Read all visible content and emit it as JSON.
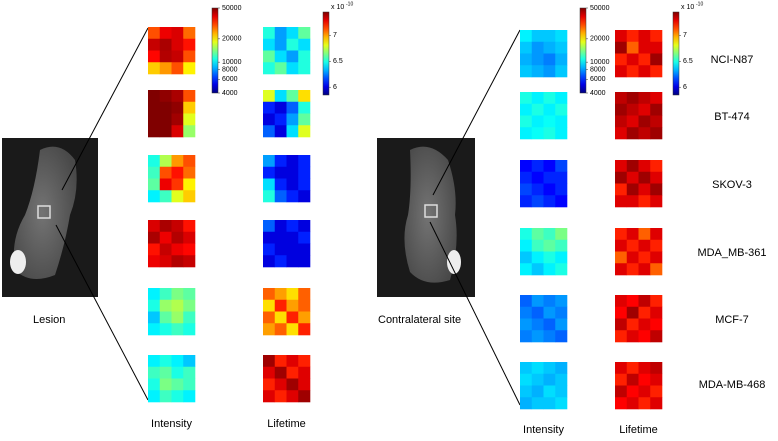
{
  "intensity_colorbar": {
    "lim": [
      4000,
      50000
    ],
    "log": true,
    "ticks": [
      50000,
      20000,
      10000,
      8000,
      6000,
      4000
    ]
  },
  "lifetime_colorbar": {
    "lim": [
      5.85,
      7.45
    ],
    "ticks": [
      7,
      6.5,
      6
    ],
    "multiplier": "x 10",
    "multiplier_exponent": "-10"
  },
  "cell_lines": [
    "NCI-N87",
    "BT-474",
    "SKOV-3",
    "MDA_MB-361",
    "MCF-7",
    "MDA-MB-468"
  ],
  "panels": [
    {
      "site_label": "Lesion",
      "intensity_label": "Intensity",
      "lifetime_label": "Lifetime",
      "rows": [
        {
          "intensity": [
            [
              30000,
              38000,
              40000,
              28000
            ],
            [
              42000,
              45000,
              40000,
              35000
            ],
            [
              36000,
              44000,
              42000,
              30000
            ],
            [
              22000,
              25000,
              30000,
              20000
            ]
          ],
          "lifetime": [
            [
              6.5,
              6.3,
              6.4,
              6.6
            ],
            [
              6.4,
              6.3,
              6.5,
              6.4
            ],
            [
              6.6,
              6.4,
              6.3,
              6.5
            ],
            [
              6.5,
              6.6,
              6.4,
              6.5
            ]
          ]
        },
        {
          "intensity": [
            [
              50000,
              48000,
              45000,
              30000
            ],
            [
              50000,
              50000,
              48000,
              22000
            ],
            [
              50000,
              50000,
              46000,
              18000
            ],
            [
              50000,
              50000,
              40000,
              15000
            ]
          ],
          "lifetime": [
            [
              6.8,
              6.4,
              6.6,
              6.9
            ],
            [
              6.1,
              6.0,
              6.2,
              6.5
            ],
            [
              6.0,
              6.1,
              6.3,
              6.6
            ],
            [
              6.2,
              6.0,
              6.4,
              6.8
            ]
          ]
        },
        {
          "intensity": [
            [
              11000,
              16000,
              25000,
              30000
            ],
            [
              12000,
              30000,
              35000,
              28000
            ],
            [
              13000,
              38000,
              32000,
              20000
            ],
            [
              10000,
              12000,
              18000,
              22000
            ]
          ],
          "lifetime": [
            [
              6.3,
              6.1,
              6.0,
              6.1
            ],
            [
              6.1,
              6.0,
              6.0,
              6.1
            ],
            [
              6.4,
              6.1,
              6.0,
              6.1
            ],
            [
              6.5,
              6.2,
              6.1,
              6.0
            ]
          ]
        },
        {
          "intensity": [
            [
              40000,
              45000,
              42000,
              35000
            ],
            [
              45000,
              38000,
              44000,
              40000
            ],
            [
              35000,
              42000,
              38000,
              36000
            ],
            [
              38000,
              40000,
              44000,
              42000
            ]
          ],
          "lifetime": [
            [
              6.2,
              6.0,
              6.1,
              6.0
            ],
            [
              6.0,
              6.0,
              6.0,
              6.1
            ],
            [
              6.1,
              6.0,
              6.0,
              6.0
            ],
            [
              6.0,
              6.1,
              6.0,
              6.0
            ]
          ]
        },
        {
          "intensity": [
            [
              10000,
              12000,
              14000,
              13000
            ],
            [
              11000,
              15000,
              16000,
              14000
            ],
            [
              9000,
              13000,
              15000,
              12000
            ],
            [
              10000,
              11000,
              12000,
              11000
            ]
          ],
          "lifetime": [
            [
              7.1,
              7.0,
              6.9,
              7.1
            ],
            [
              6.9,
              7.2,
              7.0,
              7.1
            ],
            [
              7.1,
              6.9,
              7.2,
              7.0
            ],
            [
              7.0,
              7.1,
              6.9,
              7.2
            ]
          ]
        },
        {
          "intensity": [
            [
              10000,
              11000,
              10000,
              9000
            ],
            [
              12000,
              13000,
              11000,
              12000
            ],
            [
              11000,
              14000,
              13000,
              12000
            ],
            [
              10000,
              12000,
              11000,
              10000
            ]
          ],
          "lifetime": [
            [
              7.4,
              7.2,
              7.3,
              7.2
            ],
            [
              7.3,
              7.4,
              7.2,
              7.3
            ],
            [
              7.2,
              7.3,
              7.4,
              7.3
            ],
            [
              7.3,
              7.2,
              7.3,
              7.4
            ]
          ]
        }
      ]
    },
    {
      "site_label": "Contralateral site",
      "intensity_label": "Intensity",
      "lifetime_label": "Lifetime",
      "rows": [
        {
          "intensity": [
            [
              10000,
              9000,
              9000,
              9500
            ],
            [
              9000,
              8000,
              8500,
              9000
            ],
            [
              8500,
              8000,
              7500,
              8500
            ],
            [
              9000,
              8500,
              8000,
              9000
            ]
          ],
          "lifetime": [
            [
              7.3,
              7.2,
              7.3,
              7.2
            ],
            [
              7.4,
              7.1,
              7.3,
              7.3
            ],
            [
              7.2,
              7.3,
              7.2,
              7.4
            ],
            [
              7.3,
              7.2,
              7.3,
              7.2
            ]
          ]
        },
        {
          "intensity": [
            [
              11000,
              10000,
              11000,
              10000
            ],
            [
              10000,
              11000,
              10000,
              11000
            ],
            [
              11000,
              10000,
              10500,
              10000
            ],
            [
              10000,
              10500,
              11000,
              10000
            ]
          ],
          "lifetime": [
            [
              7.35,
              7.4,
              7.35,
              7.3
            ],
            [
              7.4,
              7.35,
              7.3,
              7.4
            ],
            [
              7.35,
              7.3,
              7.4,
              7.35
            ],
            [
              7.3,
              7.4,
              7.35,
              7.4
            ]
          ]
        },
        {
          "intensity": [
            [
              5500,
              6000,
              5500,
              6500
            ],
            [
              6000,
              5500,
              6000,
              6000
            ],
            [
              6500,
              6000,
              5500,
              6000
            ],
            [
              6000,
              6500,
              6000,
              5500
            ]
          ],
          "lifetime": [
            [
              7.3,
              7.4,
              7.3,
              7.2
            ],
            [
              7.4,
              7.3,
              7.4,
              7.3
            ],
            [
              7.2,
              7.4,
              7.3,
              7.4
            ],
            [
              7.3,
              7.3,
              7.2,
              7.3
            ]
          ]
        },
        {
          "intensity": [
            [
              11000,
              13000,
              12000,
              14000
            ],
            [
              10000,
              12000,
              13000,
              12000
            ],
            [
              9000,
              10000,
              11000,
              10000
            ],
            [
              10000,
              9000,
              10000,
              11000
            ]
          ],
          "lifetime": [
            [
              7.2,
              7.3,
              7.1,
              7.3
            ],
            [
              7.3,
              7.2,
              7.3,
              7.2
            ],
            [
              7.1,
              7.3,
              7.2,
              7.3
            ],
            [
              7.3,
              7.2,
              7.3,
              7.1
            ]
          ]
        },
        {
          "intensity": [
            [
              7000,
              8000,
              7500,
              8000
            ],
            [
              7500,
              7000,
              8000,
              7500
            ],
            [
              8000,
              7500,
              7000,
              8000
            ],
            [
              7500,
              8000,
              7500,
              7000
            ]
          ],
          "lifetime": [
            [
              7.3,
              7.25,
              7.35,
              7.2
            ],
            [
              7.25,
              7.4,
              7.2,
              7.3
            ],
            [
              7.35,
              7.2,
              7.3,
              7.25
            ],
            [
              7.2,
              7.3,
              7.25,
              7.35
            ]
          ]
        },
        {
          "intensity": [
            [
              9000,
              9500,
              9000,
              8500
            ],
            [
              9500,
              9000,
              8500,
              9000
            ],
            [
              9000,
              8500,
              9500,
              9000
            ],
            [
              8500,
              9000,
              9000,
              9500
            ]
          ],
          "lifetime": [
            [
              7.3,
              7.2,
              7.3,
              7.35
            ],
            [
              7.2,
              7.35,
              7.25,
              7.3
            ],
            [
              7.35,
              7.25,
              7.3,
              7.2
            ],
            [
              7.25,
              7.3,
              7.2,
              7.3
            ]
          ]
        }
      ]
    }
  ]
}
